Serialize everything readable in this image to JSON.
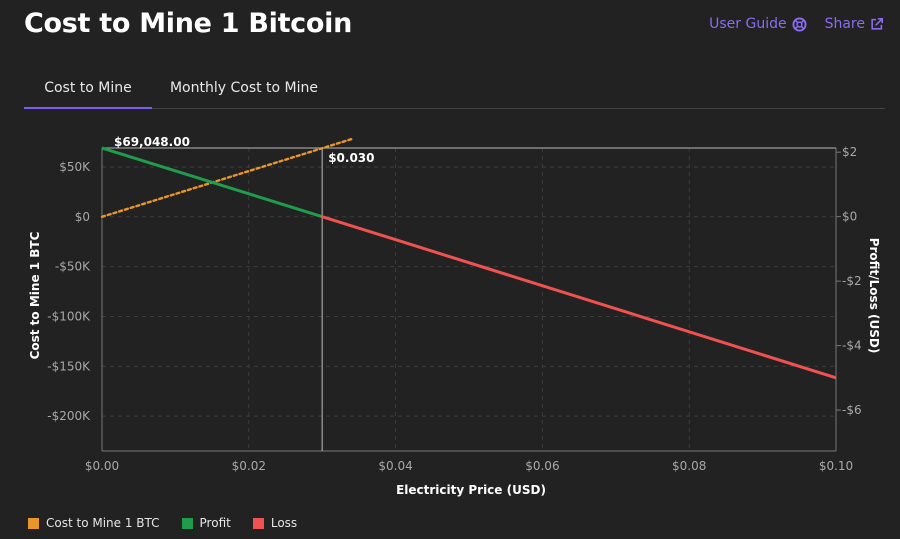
{
  "header": {
    "title": "Cost to Mine 1 Bitcoin",
    "user_guide_label": "User Guide",
    "share_label": "Share"
  },
  "tabs": [
    {
      "label": "Cost to Mine",
      "active": true
    },
    {
      "label": "Monthly Cost to Mine",
      "active": false
    }
  ],
  "colors": {
    "cost": "#e8962a",
    "profit": "#1f9d4c",
    "loss": "#f05252",
    "accent": "#7b5cf0"
  },
  "chart_data": {
    "type": "line",
    "xlabel": "Electricity Price (USD)",
    "ylabel_left": "Cost to Mine 1 BTC",
    "ylabel_right": "Profit/Loss (USD)",
    "x_range": [
      0,
      0.1
    ],
    "y_left_range": [
      -235000,
      69048
    ],
    "y_right_range": [
      -7.27,
      2.13
    ],
    "x_ticks": [
      "$0.00",
      "$0.02",
      "$0.04",
      "$0.06",
      "$0.08",
      "$0.10"
    ],
    "y_left_ticks": [
      {
        "value": 50000,
        "label": "$50K"
      },
      {
        "value": 0,
        "label": "$0"
      },
      {
        "value": -50000,
        "label": "-$50K"
      },
      {
        "value": -100000,
        "label": "-$100K"
      },
      {
        "value": -150000,
        "label": "-$150K"
      },
      {
        "value": -200000,
        "label": "-$200K"
      }
    ],
    "y_right_ticks": [
      {
        "value": 2,
        "label": "$2"
      },
      {
        "value": 0,
        "label": "$0"
      },
      {
        "value": -2,
        "label": "-$2"
      },
      {
        "value": -4,
        "label": "-$4"
      },
      {
        "value": -6,
        "label": "-$6"
      }
    ],
    "grid": true,
    "series": [
      {
        "name": "Cost to Mine 1 BTC",
        "axis": "left",
        "style": "dotted",
        "points": [
          [
            0,
            0
          ],
          [
            0.034,
            78000
          ]
        ]
      },
      {
        "name": "Profit",
        "axis": "right",
        "style": "solid",
        "points": [
          [
            0,
            2.13
          ],
          [
            0.03,
            0
          ]
        ]
      },
      {
        "name": "Loss",
        "axis": "right",
        "style": "solid",
        "points": [
          [
            0.03,
            0
          ],
          [
            0.1,
            -5.0
          ]
        ]
      }
    ],
    "reference": {
      "price_label": "$69,048.00",
      "price_value": 69048,
      "breakeven_label": "$0.030",
      "breakeven_x": 0.03
    },
    "legend": [
      "Cost to Mine 1 BTC",
      "Profit",
      "Loss"
    ],
    "legend_position": "bottom-left"
  }
}
